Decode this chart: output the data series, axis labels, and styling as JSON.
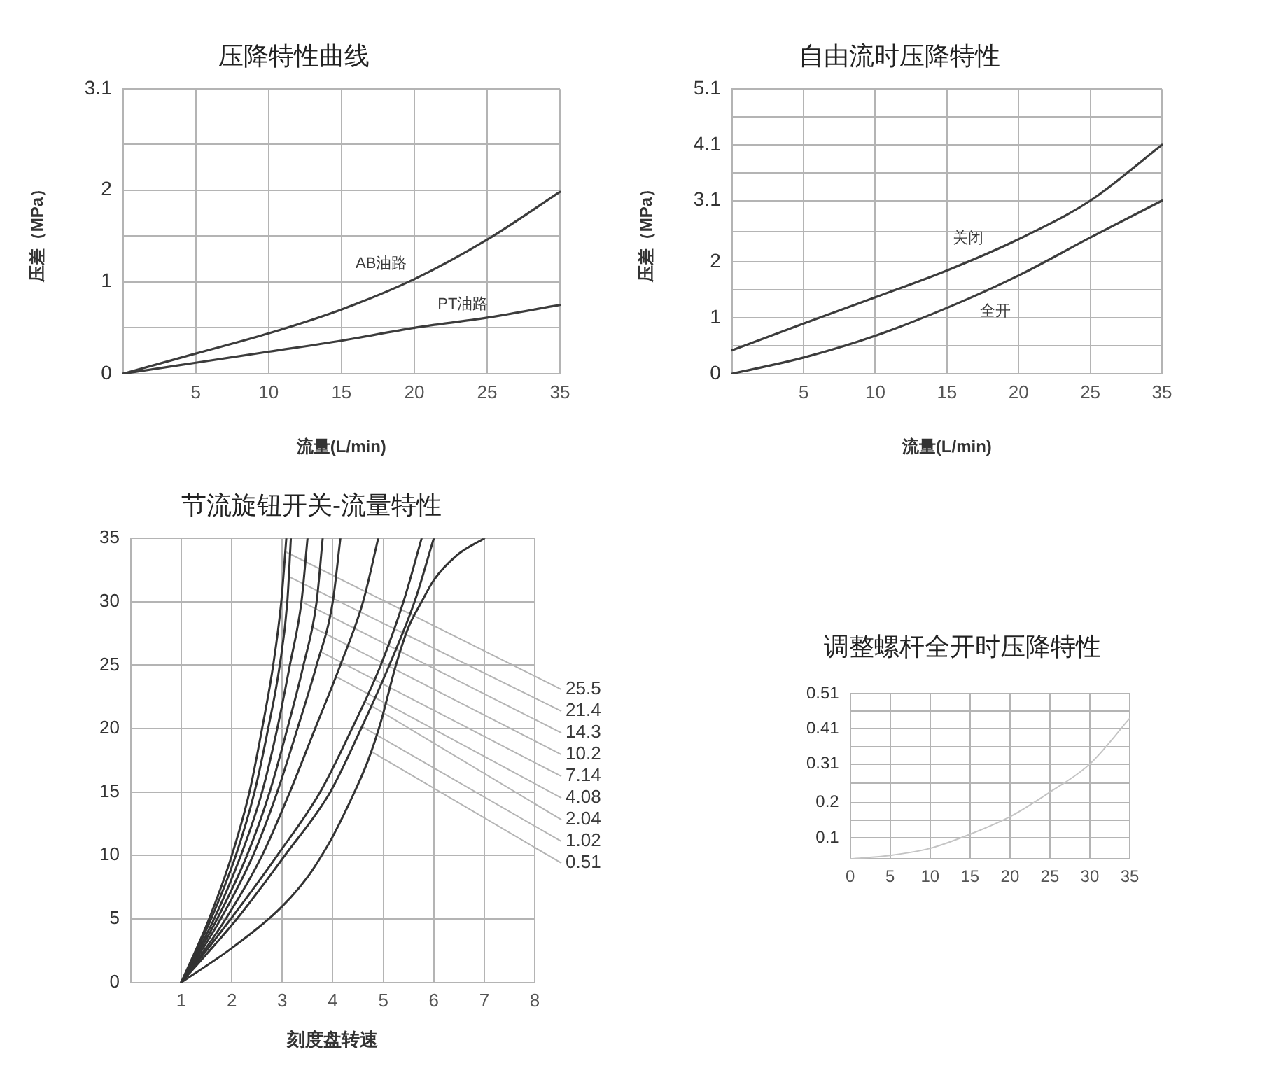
{
  "chart_data": [
    {
      "type": "line",
      "title": "压降特性曲线",
      "xlabel": "流量(L/min)",
      "ylabel": "压差（MPa）",
      "categories": [
        null,
        "5",
        "10",
        "15",
        "20",
        "25",
        "35"
      ],
      "ylim": [
        0,
        3.1
      ],
      "yticks": [
        0,
        {
          "value": 0.5,
          "label": null
        },
        1,
        {
          "value": 1.5,
          "label": null
        },
        2,
        {
          "value": 2.5,
          "label": null
        },
        3.1
      ],
      "grid": true,
      "series": [
        {
          "name": "AB油路",
          "color": "#3c3c3c",
          "values": [
            0,
            0.22,
            0.44,
            0.7,
            1.03,
            1.46,
            1.98
          ]
        },
        {
          "name": "PT油路",
          "color": "#3c3c3c",
          "values": [
            0,
            0.12,
            0.24,
            0.36,
            0.5,
            0.61,
            0.75
          ]
        }
      ]
    },
    {
      "type": "line",
      "title": "自由流时压降特性",
      "xlabel": "流量(L/min)",
      "ylabel": "压差（MPa）",
      "categories": [
        null,
        "5",
        "10",
        "15",
        "20",
        "25",
        "35"
      ],
      "ylim": [
        0,
        5.1
      ],
      "yticks": [
        0,
        {
          "value": 0.5,
          "label": null
        },
        1,
        {
          "value": 1.5,
          "label": null
        },
        2,
        {
          "value": 2.55,
          "label": null
        },
        3.1,
        {
          "value": 3.6,
          "label": null
        },
        4.1,
        {
          "value": 4.6,
          "label": null
        },
        5.1
      ],
      "grid": true,
      "series": [
        {
          "name": "关闭",
          "color": "#3c3c3c",
          "values": [
            0.42,
            0.9,
            1.37,
            1.85,
            2.41,
            3.1,
            4.1
          ]
        },
        {
          "name": "全开",
          "color": "#3c3c3c",
          "values": [
            0,
            0.29,
            0.68,
            1.18,
            1.76,
            2.44,
            3.1
          ]
        }
      ]
    },
    {
      "type": "line",
      "title": "节流旋钮开关-流量特性",
      "xlabel": "刻度盘转速",
      "xlim": [
        0,
        8
      ],
      "xticks": [
        1,
        2,
        3,
        4,
        5,
        6,
        7,
        8
      ],
      "ylim": [
        0,
        35
      ],
      "yticks": [
        0,
        5,
        10,
        15,
        20,
        25,
        30,
        35
      ],
      "grid": true,
      "series": [
        {
          "name": "25.5",
          "color": "#333333",
          "x": [
            1,
            1.55,
            2.0,
            2.35,
            2.6,
            2.82,
            2.98,
            3.08
          ],
          "values": [
            0,
            5,
            10,
            15,
            20,
            25,
            30,
            35
          ]
        },
        {
          "name": "21.4",
          "color": "#333333",
          "x": [
            1,
            1.59,
            2.08,
            2.45,
            2.72,
            2.95,
            3.1,
            3.17
          ],
          "values": [
            0,
            5,
            10,
            15,
            20,
            25,
            30,
            35
          ]
        },
        {
          "name": "14.3",
          "color": "#333333",
          "x": [
            1,
            1.65,
            2.18,
            2.6,
            2.9,
            3.15,
            3.38,
            3.5
          ],
          "values": [
            0,
            5,
            10,
            15,
            20,
            25,
            30,
            35
          ]
        },
        {
          "name": "10.2",
          "color": "#333333",
          "x": [
            1,
            1.71,
            2.3,
            2.75,
            3.1,
            3.42,
            3.68,
            3.8
          ],
          "values": [
            0,
            5,
            10,
            15,
            20,
            25,
            30,
            35
          ]
        },
        {
          "name": "7.14",
          "color": "#333333",
          "x": [
            1,
            1.78,
            2.42,
            2.9,
            3.3,
            3.68,
            4.0,
            4.15
          ],
          "values": [
            0,
            5,
            10,
            15,
            20,
            25,
            30,
            35
          ]
        },
        {
          "name": "4.08",
          "color": "#333333",
          "x": [
            1,
            1.88,
            2.6,
            3.15,
            3.65,
            4.15,
            4.6,
            4.9
          ],
          "values": [
            0,
            5,
            10,
            15,
            20,
            25,
            30,
            35
          ]
        },
        {
          "name": "2.04",
          "color": "#333333",
          "x": [
            1,
            1.98,
            2.9,
            3.75,
            4.38,
            4.95,
            5.4,
            5.76
          ],
          "values": [
            0,
            5,
            10,
            15,
            20,
            25,
            30,
            35
          ]
        },
        {
          "name": "1.02",
          "color": "#333333",
          "x": [
            1,
            2.1,
            3.05,
            3.95,
            4.56,
            5.12,
            5.62,
            6.0
          ],
          "values": [
            0,
            5,
            10,
            15,
            20,
            25,
            30,
            35
          ]
        },
        {
          "name": "0.51",
          "color": "#333333",
          "x": [
            1,
            2,
            3,
            3.5,
            3.75,
            4,
            4.43,
            4.7,
            4.95,
            5.25,
            5.5,
            5.76,
            6,
            6.47,
            7
          ],
          "values": [
            0,
            2.7,
            6.0,
            8.3,
            9.8,
            11.5,
            15,
            17.5,
            20.5,
            25,
            28,
            30,
            31.7,
            33.7,
            35
          ]
        }
      ]
    },
    {
      "type": "line",
      "title": "调整螺杆全开时压降特性",
      "xlim": [
        0,
        35
      ],
      "xticks": [
        0,
        5,
        10,
        15,
        20,
        25,
        30,
        35
      ],
      "ylim": [
        0.04,
        0.51
      ],
      "yticks": [
        0.1,
        {
          "value": 0.15,
          "label": null
        },
        0.2,
        {
          "value": 0.255,
          "label": null
        },
        0.31,
        {
          "value": 0.36,
          "label": null
        },
        0.41,
        {
          "value": 0.46,
          "label": null
        },
        0.51
      ],
      "grid": true,
      "x": [
        0,
        5,
        10,
        15,
        20,
        25,
        30,
        35
      ],
      "series": [
        {
          "color": "#c4c4c4",
          "values": [
            0.04,
            0.05,
            0.07,
            0.11,
            0.16,
            0.23,
            0.31,
            0.44
          ]
        }
      ]
    }
  ]
}
